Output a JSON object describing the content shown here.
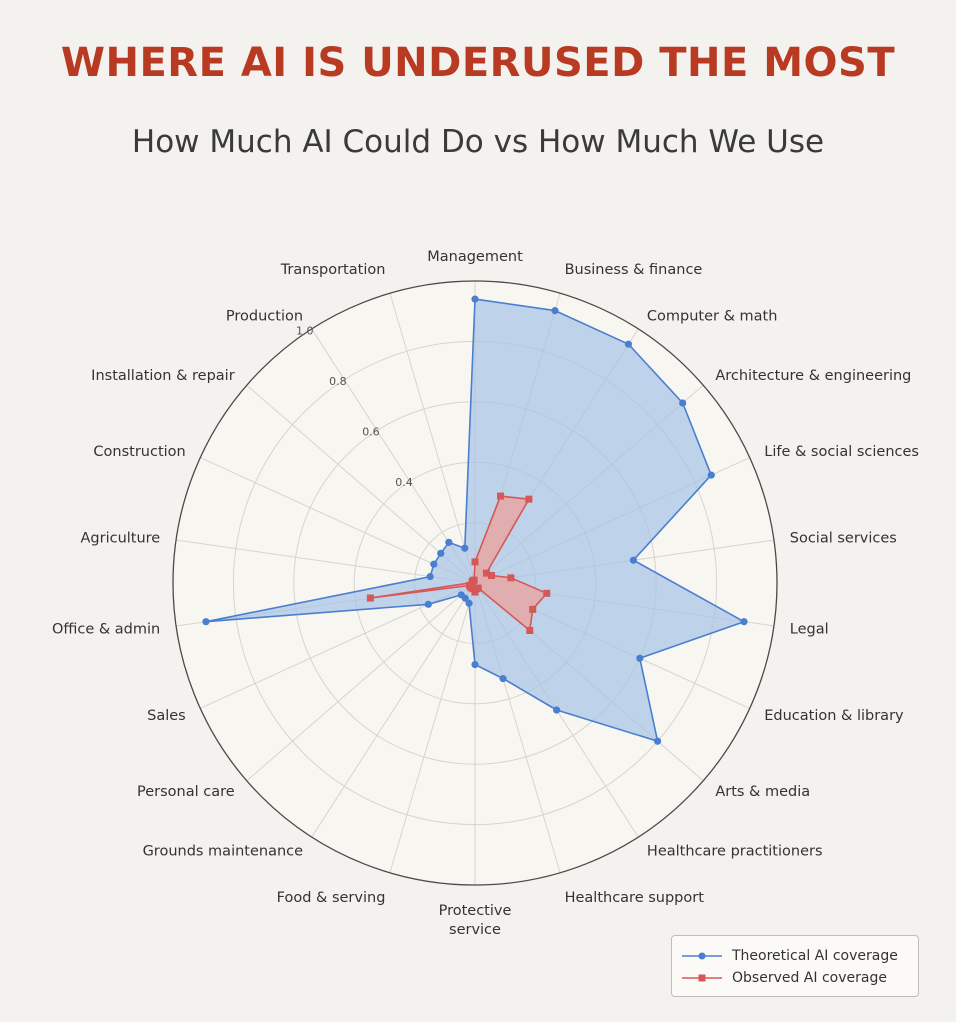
{
  "title": "WHERE AI IS UNDERUSED THE MOST",
  "subtitle": "How Much AI Could Do vs How Much We Use",
  "chart_data": {
    "type": "radar",
    "categories": [
      "Management",
      "Business & finance",
      "Computer & math",
      "Architecture & engineering",
      "Life & social sciences",
      "Social services",
      "Legal",
      "Education & library",
      "Arts & media",
      "Healthcare practitioners",
      "Healthcare support",
      "Protective service",
      "Food & serving",
      "Grounds maintenance",
      "Personal care",
      "Sales",
      "Office & admin",
      "Agriculture",
      "Construction",
      "Installation & repair",
      "Production",
      "Transportation"
    ],
    "category_labels": [
      "Management",
      "Business & finance",
      "Computer & math",
      "Architecture & engineering",
      "Life & social sciences",
      "Social services",
      "Legal",
      "Education & library",
      "Arts & media",
      "Healthcare practitioners",
      "Healthcare support",
      "Protective\nservice",
      "Food & serving",
      "Grounds maintenance",
      "Personal care",
      "Sales",
      "Office & admin",
      "Agriculture",
      "Construction",
      "Installation & repair",
      "Production",
      "Transportation"
    ],
    "radial_ticks": [
      "0.4",
      "0.6",
      "0.8",
      "1.0"
    ],
    "rlim": [
      0,
      1
    ],
    "grid": true,
    "legend": "bottom-right",
    "series": [
      {
        "name": "Theoretical AI coverage",
        "color": "#4a7fcf",
        "fill": "#a8c4e6",
        "marker": "circle",
        "values": [
          0.94,
          0.94,
          0.94,
          0.91,
          0.86,
          0.53,
          0.9,
          0.6,
          0.8,
          0.5,
          0.33,
          0.27,
          0.07,
          0.06,
          0.06,
          0.17,
          0.9,
          0.15,
          0.15,
          0.15,
          0.16,
          0.12
        ]
      },
      {
        "name": "Observed AI coverage",
        "color": "#d65757",
        "fill": "#e9a6a4",
        "marker": "square",
        "values": [
          0.07,
          0.3,
          0.33,
          0.05,
          0.06,
          0.12,
          0.24,
          0.21,
          0.24,
          0.02,
          0.02,
          0.03,
          0.02,
          0.02,
          0.02,
          0.02,
          0.35,
          0.01,
          0.01,
          0.01,
          0.01,
          0.01
        ]
      }
    ]
  }
}
